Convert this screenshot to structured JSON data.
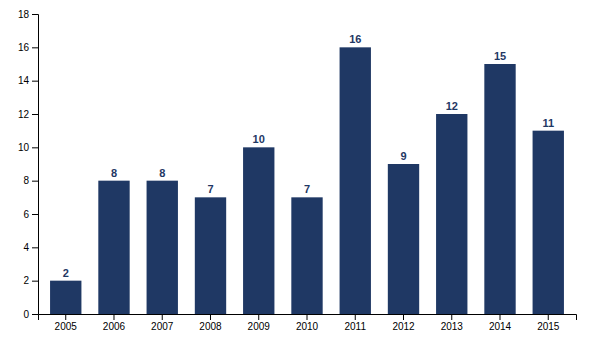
{
  "chart_data": {
    "type": "bar",
    "categories": [
      "2005",
      "2006",
      "2007",
      "2008",
      "2009",
      "2010",
      "2011",
      "2012",
      "2013",
      "2014",
      "2015"
    ],
    "values": [
      2,
      8,
      8,
      7,
      10,
      7,
      16,
      9,
      12,
      15,
      11
    ],
    "color": "#1F3864",
    "ylim": [
      0,
      18
    ],
    "yticks": [
      0,
      2,
      4,
      6,
      8,
      10,
      12,
      14,
      16,
      18
    ],
    "grid": false,
    "data_labels": true
  }
}
